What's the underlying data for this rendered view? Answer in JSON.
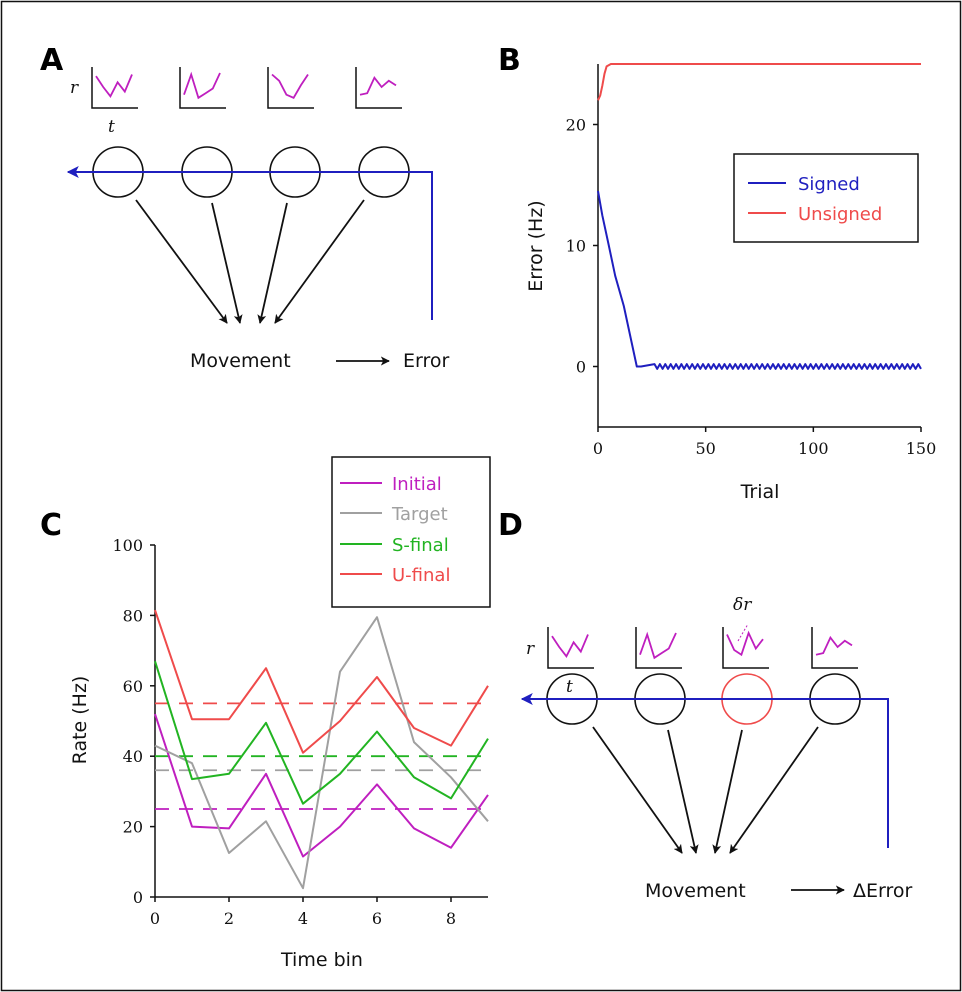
{
  "colors": {
    "blue": "#1f1fbf",
    "red": "#ef4b4b",
    "magenta": "#bf1fbf",
    "gray": "#a0a0a0",
    "green": "#22b422",
    "black": "#111111"
  },
  "panels": {
    "a": {
      "letter": "A",
      "r_label": "r",
      "t_label": "t",
      "movement": "Movement",
      "error": "Error",
      "sparks": [
        [
          0.9,
          0.55,
          0.25,
          0.7,
          0.4,
          0.95
        ],
        [
          0.3,
          0.95,
          0.2,
          0.35,
          0.5,
          1.0
        ],
        [
          0.95,
          0.75,
          0.3,
          0.2,
          0.6,
          0.95
        ],
        [
          0.3,
          0.35,
          0.85,
          0.55,
          0.75,
          0.6
        ]
      ]
    },
    "b": {
      "letter": "B"
    },
    "c": {
      "letter": "C"
    },
    "d": {
      "letter": "D",
      "r_label": "r",
      "t_label": "t",
      "dr_label": "δr",
      "movement": "Movement",
      "error": "ΔError",
      "sparks": [
        [
          0.9,
          0.55,
          0.25,
          0.7,
          0.4,
          0.95
        ],
        [
          0.3,
          0.95,
          0.2,
          0.35,
          0.5,
          1.0
        ],
        [
          0.95,
          0.45,
          0.3,
          1.0,
          0.5,
          0.8
        ],
        [
          0.3,
          0.35,
          0.85,
          0.55,
          0.75,
          0.6
        ]
      ]
    }
  },
  "chart_data": [
    {
      "type": "line",
      "panel": "B",
      "ylabel": "Error (Hz)",
      "xlabel": "Trial",
      "xlim": [
        0,
        150
      ],
      "ylim": [
        -5,
        25
      ],
      "xticks": [
        "0",
        "50",
        "100",
        "150"
      ],
      "yticks": [
        "0",
        "10",
        "20"
      ],
      "legend": {
        "placement": "right",
        "entries": [
          "Signed",
          "Unsigned"
        ]
      },
      "series": [
        {
          "name": "Signed",
          "color": "#1f1fbf",
          "x": [
            0,
            2,
            5,
            8,
            12,
            18,
            20,
            150
          ],
          "y": [
            14.5,
            12.5,
            10,
            7.5,
            5,
            0,
            0,
            0
          ],
          "oscillation_after": 25,
          "oscillation_amp": 0.2
        },
        {
          "name": "Unsigned",
          "color": "#ef4b4b",
          "x": [
            0,
            1,
            2,
            3,
            4,
            6,
            150
          ],
          "y": [
            22.0,
            22.4,
            23.2,
            24.2,
            24.8,
            25,
            25
          ]
        }
      ]
    },
    {
      "type": "line",
      "panel": "C",
      "ylabel": "Rate (Hz)",
      "xlabel": "Time bin",
      "xlim": [
        0,
        9
      ],
      "ylim": [
        0,
        100
      ],
      "xticks": [
        "0",
        "2",
        "4",
        "6",
        "8"
      ],
      "yticks": [
        "0",
        "20",
        "40",
        "60",
        "80",
        "100"
      ],
      "legend": {
        "placement": "top-right",
        "entries": [
          "Initial",
          "Target",
          "S-final",
          "U-final"
        ]
      },
      "series": [
        {
          "name": "Initial",
          "color": "#bf1fbf",
          "x": [
            0,
            1,
            2,
            3,
            4,
            5,
            6,
            7,
            8,
            9
          ],
          "y": [
            52,
            20,
            19.5,
            35,
            11.5,
            20,
            32,
            19.5,
            14,
            29
          ],
          "mean": 25
        },
        {
          "name": "Target",
          "color": "#a0a0a0",
          "x": [
            0,
            1,
            2,
            3,
            4,
            5,
            6,
            7,
            8,
            9
          ],
          "y": [
            43,
            38,
            12.5,
            21.5,
            2.5,
            64,
            79.5,
            44,
            34,
            21.5
          ],
          "mean": 36
        },
        {
          "name": "S-final",
          "color": "#22b422",
          "x": [
            0,
            1,
            2,
            3,
            4,
            5,
            6,
            7,
            8,
            9
          ],
          "y": [
            67,
            33.5,
            35,
            49.5,
            26.5,
            35,
            47,
            34,
            28,
            45
          ],
          "mean": 40
        },
        {
          "name": "U-final",
          "color": "#ef4b4b",
          "x": [
            0,
            1,
            2,
            3,
            4,
            5,
            6,
            7,
            8,
            9
          ],
          "y": [
            81.5,
            50.5,
            50.5,
            65,
            41,
            50,
            62.5,
            48,
            43,
            60
          ],
          "mean": 55
        }
      ]
    }
  ]
}
